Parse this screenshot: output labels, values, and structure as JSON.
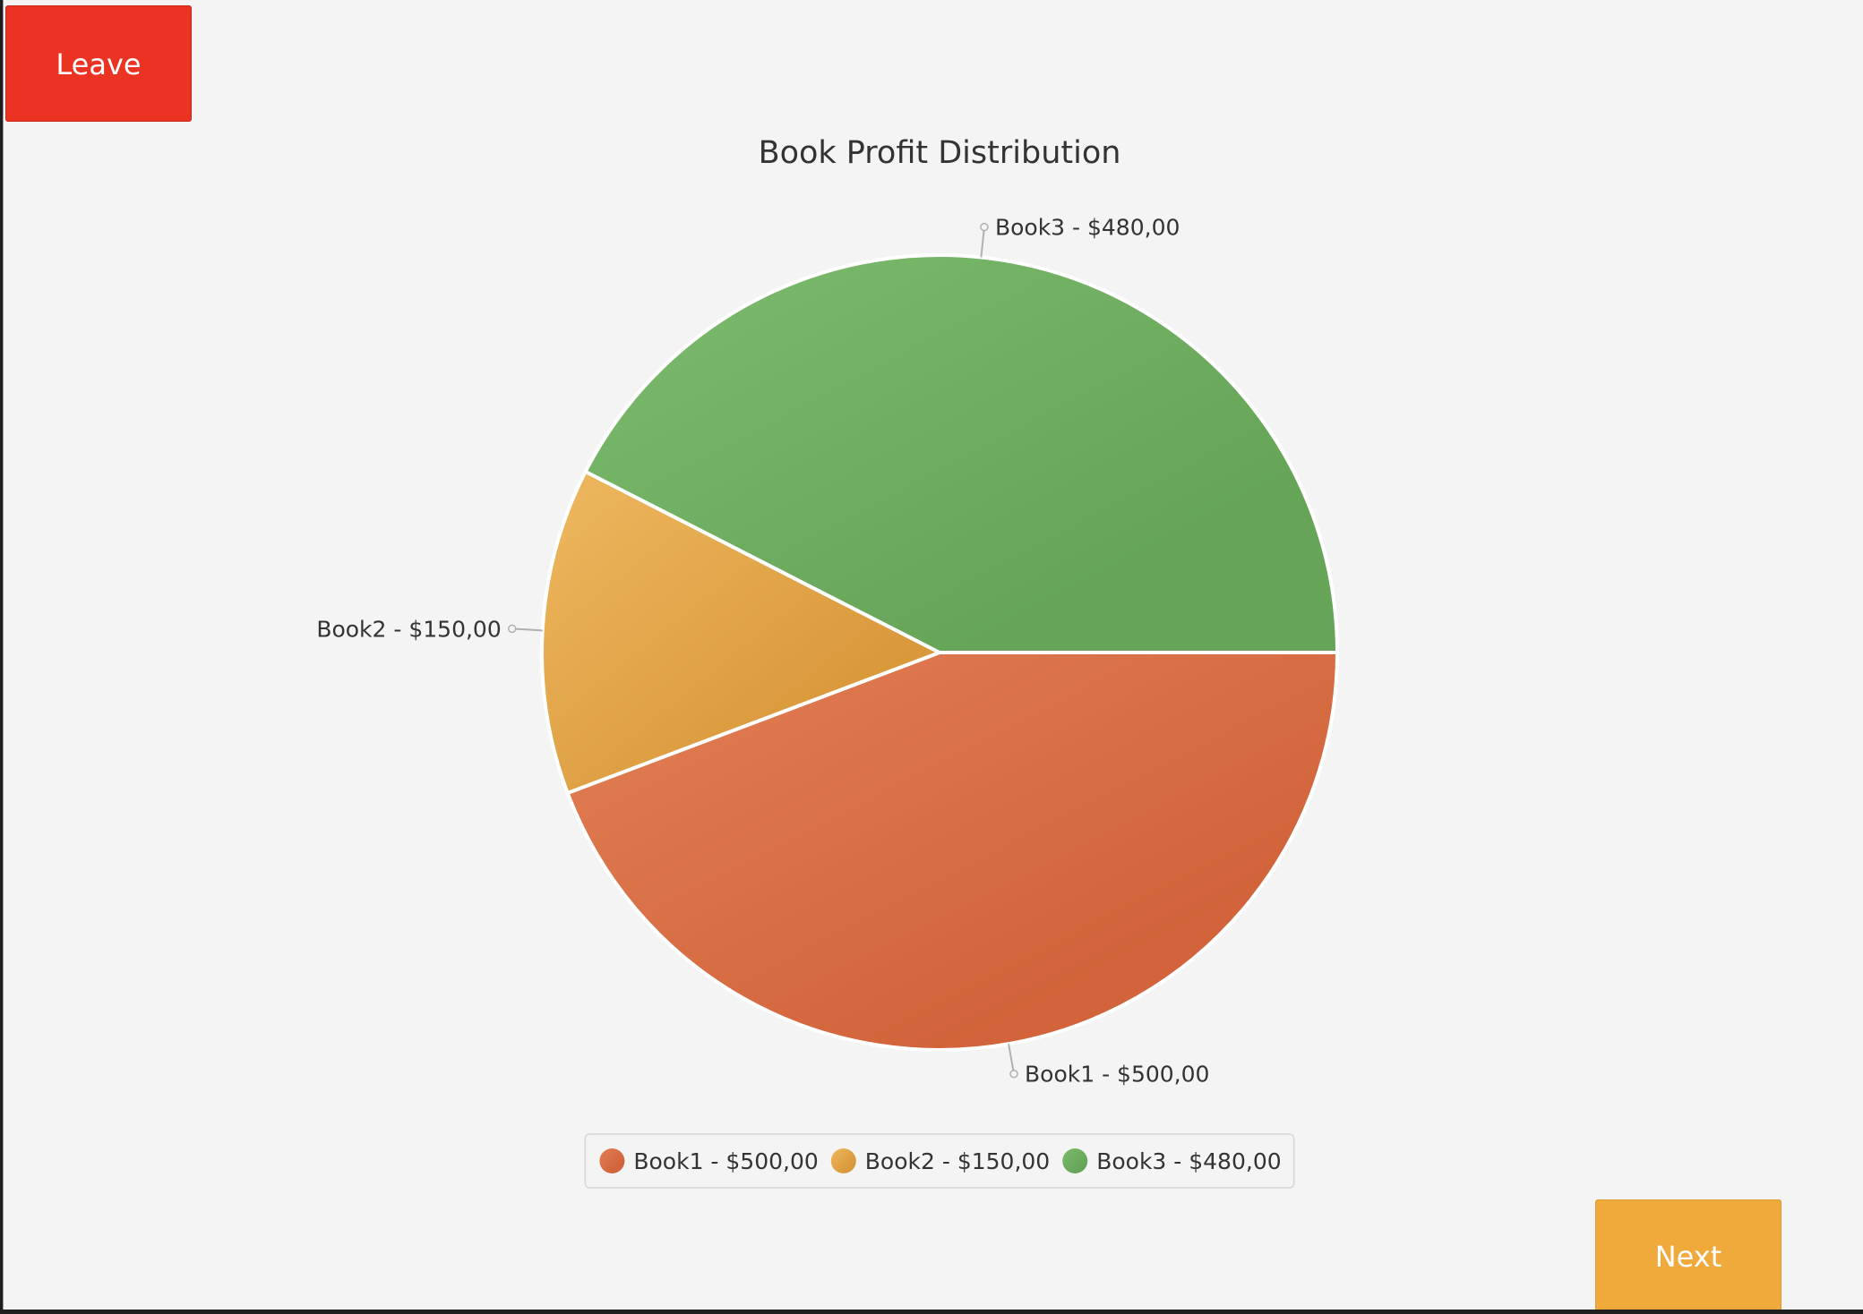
{
  "buttons": {
    "leave_label": "Leave",
    "next_label": "Next"
  },
  "colors": {
    "leave_button": "#ea3323",
    "next_button": "#f0a93b",
    "background": "#f4f4f4"
  },
  "chart_data": {
    "type": "pie",
    "title": "Book Profit Distribution",
    "slices": [
      {
        "name": "Book1",
        "value": 500,
        "label": "Book1 - $500,00",
        "color": "#d2633a",
        "color_light": "#e27f56"
      },
      {
        "name": "Book2",
        "value": 150,
        "label": "Book2 - $150,00",
        "color": "#d9983a",
        "color_light": "#eeb860"
      },
      {
        "name": "Book3",
        "value": 480,
        "label": "Book3 - $480,00",
        "color": "#66a558",
        "color_light": "#7dbb6e"
      }
    ],
    "legend": {
      "placement": "bottom",
      "entries": [
        "Book1 - $500,00",
        "Book2 - $150,00",
        "Book3 - $480,00"
      ]
    }
  }
}
